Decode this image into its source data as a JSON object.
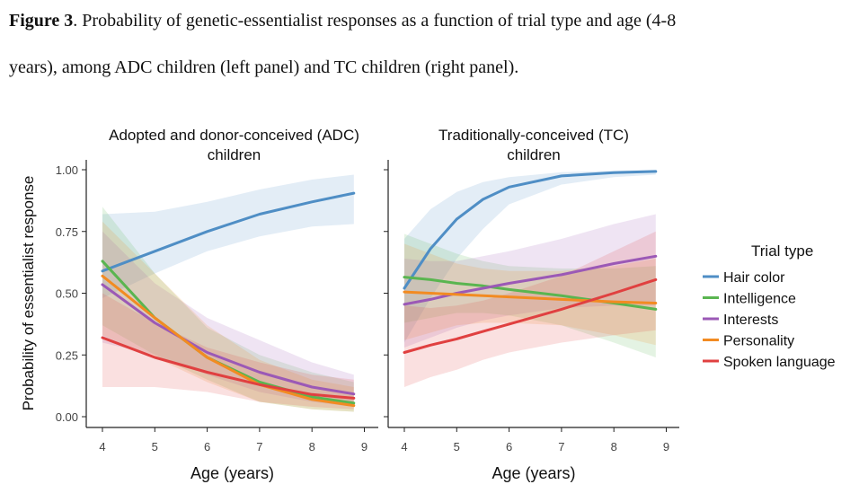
{
  "caption": {
    "label": "Figure 3",
    "line1": ". Probability of genetic-essentialist responses as a function of trial type and age (4-8",
    "line2": "years), among ADC children (left panel) and TC children (right panel)."
  },
  "chart_data": [
    {
      "type": "line",
      "title_lines": [
        "Adopted and donor-conceived (ADC)",
        "children"
      ],
      "xlabel": "Age (years)",
      "ylabel": "Probability of essentialist response",
      "xlim": [
        4,
        9
      ],
      "ylim": [
        0,
        1
      ],
      "x_ticks": [
        4,
        5,
        6,
        7,
        8,
        9
      ],
      "y_ticks": [
        "0.00",
        "0.25",
        "0.50",
        "0.75",
        "1.00"
      ],
      "grid": false,
      "x": [
        4,
        5,
        6,
        7,
        8,
        8.8
      ],
      "series": [
        {
          "name": "Hair color",
          "color": "#4f8ec5",
          "values": [
            0.59,
            0.67,
            0.75,
            0.82,
            0.87,
            0.905
          ],
          "lower": [
            0.48,
            0.58,
            0.67,
            0.73,
            0.77,
            0.78
          ],
          "upper": [
            0.82,
            0.83,
            0.87,
            0.92,
            0.96,
            0.98
          ]
        },
        {
          "name": "Intelligence",
          "color": "#5ab550",
          "values": [
            0.63,
            0.4,
            0.24,
            0.14,
            0.08,
            0.055
          ],
          "lower": [
            0.37,
            0.25,
            0.15,
            0.06,
            0.03,
            0.02
          ],
          "upper": [
            0.85,
            0.58,
            0.36,
            0.25,
            0.18,
            0.14
          ]
        },
        {
          "name": "Interests",
          "color": "#9b59b6",
          "values": [
            0.535,
            0.38,
            0.26,
            0.18,
            0.12,
            0.092
          ],
          "lower": [
            0.3,
            0.25,
            0.17,
            0.1,
            0.06,
            0.04
          ],
          "upper": [
            0.75,
            0.54,
            0.4,
            0.31,
            0.22,
            0.17
          ]
        },
        {
          "name": "Personality",
          "color": "#f28b22",
          "values": [
            0.57,
            0.4,
            0.24,
            0.13,
            0.07,
            0.045
          ],
          "lower": [
            0.33,
            0.24,
            0.14,
            0.06,
            0.03,
            0.02
          ],
          "upper": [
            0.79,
            0.58,
            0.37,
            0.23,
            0.15,
            0.12
          ]
        },
        {
          "name": "Spoken language",
          "color": "#e04040",
          "values": [
            0.32,
            0.24,
            0.18,
            0.13,
            0.09,
            0.075
          ],
          "lower": [
            0.12,
            0.12,
            0.1,
            0.06,
            0.04,
            0.03
          ],
          "upper": [
            0.5,
            0.38,
            0.28,
            0.22,
            0.17,
            0.15
          ]
        }
      ]
    },
    {
      "type": "line",
      "title_lines": [
        "Traditionally-conceived (TC)",
        "children"
      ],
      "xlabel": "Age (years)",
      "xlim": [
        4,
        9
      ],
      "ylim": [
        0,
        1
      ],
      "x_ticks": [
        4,
        5,
        6,
        7,
        8,
        9
      ],
      "grid": false,
      "x": [
        4,
        4.5,
        5,
        5.5,
        6,
        7,
        8,
        8.8
      ],
      "series": [
        {
          "name": "Hair color",
          "color": "#4f8ec5",
          "values": [
            0.52,
            0.68,
            0.8,
            0.88,
            0.93,
            0.975,
            0.988,
            0.993
          ],
          "lower": [
            0.3,
            0.48,
            0.64,
            0.76,
            0.86,
            0.94,
            0.97,
            0.98
          ],
          "upper": [
            0.72,
            0.84,
            0.91,
            0.95,
            0.97,
            0.99,
            0.996,
            0.999
          ]
        },
        {
          "name": "Intelligence",
          "color": "#5ab550",
          "values": [
            0.565,
            0.555,
            0.54,
            0.53,
            0.515,
            0.49,
            0.46,
            0.435
          ],
          "lower": [
            0.38,
            0.4,
            0.42,
            0.42,
            0.41,
            0.37,
            0.3,
            0.24
          ],
          "upper": [
            0.74,
            0.7,
            0.66,
            0.63,
            0.61,
            0.6,
            0.6,
            0.61
          ]
        },
        {
          "name": "Interests",
          "color": "#9b59b6",
          "values": [
            0.455,
            0.475,
            0.5,
            0.52,
            0.54,
            0.575,
            0.62,
            0.65
          ],
          "lower": [
            0.28,
            0.32,
            0.36,
            0.39,
            0.41,
            0.44,
            0.45,
            0.45
          ],
          "upper": [
            0.64,
            0.63,
            0.63,
            0.65,
            0.67,
            0.72,
            0.78,
            0.82
          ]
        },
        {
          "name": "Personality",
          "color": "#f28b22",
          "values": [
            0.505,
            0.5,
            0.495,
            0.49,
            0.485,
            0.475,
            0.465,
            0.46
          ],
          "lower": [
            0.31,
            0.34,
            0.37,
            0.38,
            0.38,
            0.37,
            0.33,
            0.29
          ],
          "upper": [
            0.7,
            0.66,
            0.62,
            0.6,
            0.59,
            0.59,
            0.61,
            0.64
          ]
        },
        {
          "name": "Spoken language",
          "color": "#e04040",
          "values": [
            0.26,
            0.29,
            0.315,
            0.345,
            0.375,
            0.435,
            0.5,
            0.555
          ],
          "lower": [
            0.12,
            0.16,
            0.19,
            0.23,
            0.26,
            0.3,
            0.33,
            0.35
          ],
          "upper": [
            0.45,
            0.44,
            0.45,
            0.47,
            0.5,
            0.57,
            0.67,
            0.75
          ]
        }
      ]
    }
  ],
  "legend": {
    "title": "Trial type",
    "placement": "right",
    "items": [
      {
        "name": "Hair color",
        "color": "#4f8ec5"
      },
      {
        "name": "Intelligence",
        "color": "#5ab550"
      },
      {
        "name": "Interests",
        "color": "#9b59b6"
      },
      {
        "name": "Personality",
        "color": "#f28b22"
      },
      {
        "name": "Spoken language",
        "color": "#e04040"
      }
    ]
  }
}
